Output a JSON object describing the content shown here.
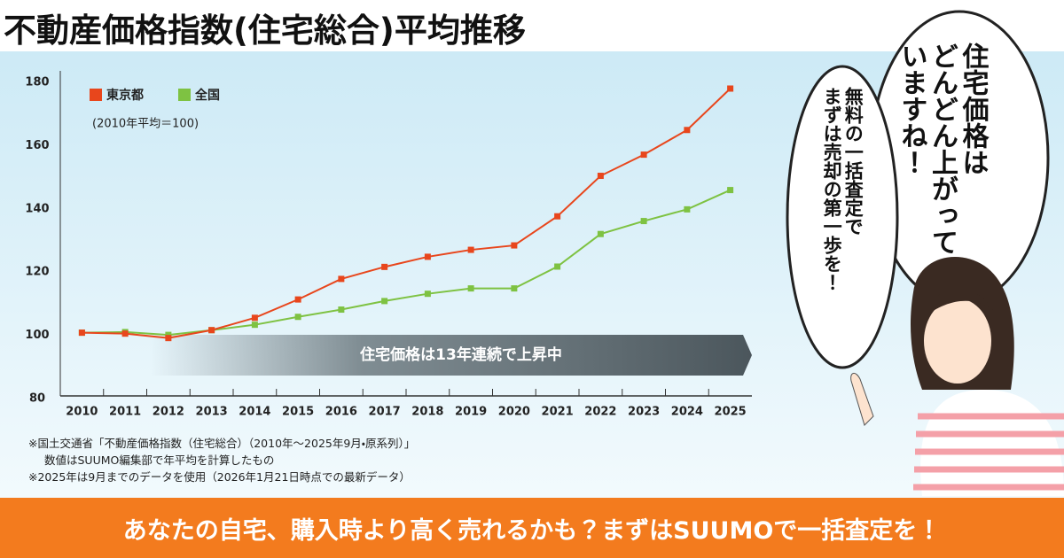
{
  "chart_data": {
    "type": "line",
    "title": "不動産価格指数(住宅総合)平均推移",
    "subtitle": "(2010年平均＝100)",
    "annotation": "住宅価格は13年連続で上昇中",
    "categories": [
      "2010",
      "2011",
      "2012",
      "2013",
      "2014",
      "2015",
      "2016",
      "2017",
      "2018",
      "2019",
      "2020",
      "2021",
      "2022",
      "2023",
      "2024",
      "2025"
    ],
    "series": [
      {
        "name": "東京都",
        "color": "#e8461c",
        "values": [
          100,
          99.7,
          98.3,
          100.8,
          104.7,
          110.5,
          117,
          120.8,
          124,
          126.2,
          127.6,
          136.8,
          149.6,
          156.3,
          164.1,
          177.2
        ]
      },
      {
        "name": "全国",
        "color": "#7ec242",
        "values": [
          100,
          100.2,
          99.3,
          100.8,
          102.5,
          105,
          107.3,
          110,
          112.3,
          114,
          114,
          120.9,
          131.2,
          135.3,
          139,
          145.1
        ]
      }
    ],
    "ylim": [
      80,
      180
    ],
    "yticks": [
      80,
      100,
      120,
      140,
      160,
      180
    ],
    "grid": false,
    "legend": "top-left",
    "footnotes": [
      "※国土交通省「不動産価格指数（住宅総合）（2010年〜2025年9月・原系列）」",
      "数値はSUUMO編集部で年平均を計算したもの",
      "※2025年は9月までのデータを使用（2026年1月21日時点での最新データ）"
    ]
  },
  "speech_bubbles": [
    {
      "lines": [
        "住宅価格は",
        "どんどん上がって",
        "いますね！"
      ]
    },
    {
      "lines": [
        "無料の一括査定で",
        "まずは売却の第一歩を！"
      ]
    }
  ],
  "banner": "あなたの自宅、購入時より高く売れるかも？まずはSUUMOで一括査定を！"
}
